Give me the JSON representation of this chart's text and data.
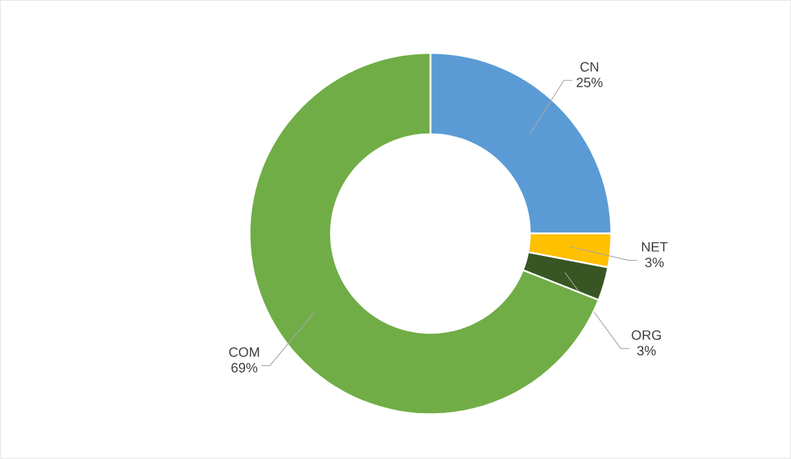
{
  "chart_data": {
    "type": "donut",
    "categories": [
      "CN",
      "NET",
      "ORG",
      "COM"
    ],
    "values": [
      25,
      3,
      3,
      69
    ],
    "colors": [
      "#5b9bd5",
      "#ffc000",
      "#375623",
      "#70ad47"
    ],
    "value_labels": [
      "25%",
      "3%",
      "3%",
      "69%"
    ]
  }
}
